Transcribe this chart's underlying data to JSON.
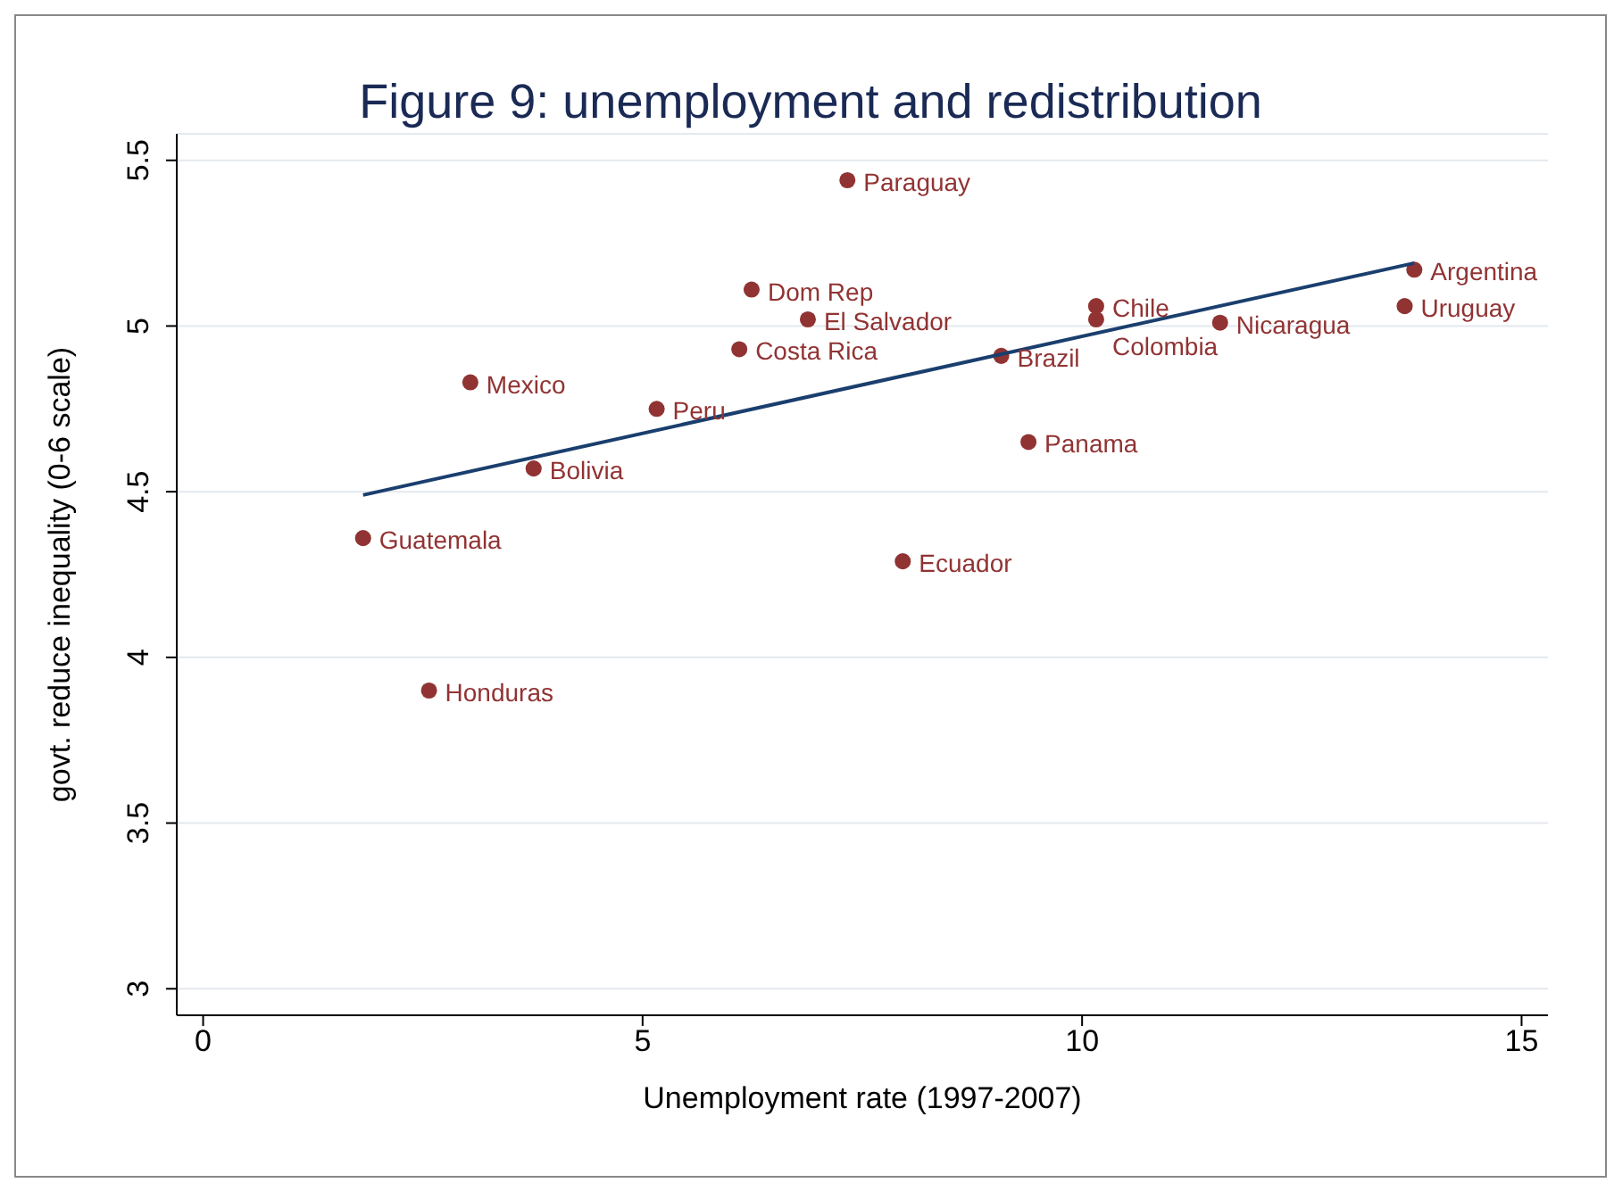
{
  "chart_data": {
    "type": "scatter",
    "title": "Figure 9: unemployment and redistribution",
    "xlabel": "Unemployment rate (1997-2007)",
    "ylabel": "govt. reduce inequality (0-6 scale)",
    "xlim": [
      -0.3,
      15.3
    ],
    "ylim": [
      2.92,
      5.58
    ],
    "xticks": [
      0,
      5,
      10,
      15
    ],
    "yticks": [
      3,
      3.5,
      4,
      4.5,
      5,
      5.5
    ],
    "grid": "y",
    "marker": "circle",
    "series": [
      {
        "color": "#913333",
        "x": [
          7.33,
          13.78,
          13.67,
          6.24,
          6.88,
          6.1,
          10.16,
          10.16,
          11.57,
          9.08,
          3.04,
          5.16,
          9.39,
          3.76,
          1.82,
          7.96,
          2.57
        ],
        "values": [
          5.44,
          5.17,
          5.06,
          5.11,
          5.02,
          4.93,
          5.06,
          5.02,
          5.01,
          4.91,
          4.83,
          4.75,
          4.65,
          4.57,
          4.36,
          4.29,
          3.9
        ]
      },
      {
        "type": "line",
        "marker": "none",
        "color": "#1a3f6e",
        "x": [
          1.82,
          13.78
        ],
        "values": [
          4.49,
          5.19
        ]
      }
    ],
    "annotations": [
      {
        "text": "Paraguay",
        "x": 7.33,
        "y": 5.44
      },
      {
        "text": "Argentina",
        "x": 13.78,
        "y": 5.17
      },
      {
        "text": "Uruguay",
        "x": 13.67,
        "y": 5.06
      },
      {
        "text": "Dom Rep",
        "x": 6.24,
        "y": 5.11
      },
      {
        "text": "El Salvador",
        "x": 6.88,
        "y": 5.02
      },
      {
        "text": "Costa Rica",
        "x": 6.1,
        "y": 4.93
      },
      {
        "text": "Chile",
        "x": 10.16,
        "y": 5.06
      },
      {
        "text": "Colombia",
        "x": 10.16,
        "y": 5.02
      },
      {
        "text": "Nicaragua",
        "x": 11.57,
        "y": 5.01
      },
      {
        "text": "Brazil",
        "x": 9.08,
        "y": 4.91
      },
      {
        "text": "Mexico",
        "x": 3.04,
        "y": 4.83
      },
      {
        "text": "Peru",
        "x": 5.16,
        "y": 4.75
      },
      {
        "text": "Panama",
        "x": 9.39,
        "y": 4.65
      },
      {
        "text": "Bolivia",
        "x": 3.76,
        "y": 4.57
      },
      {
        "text": "Guatemala",
        "x": 1.82,
        "y": 4.36
      },
      {
        "text": "Ecuador",
        "x": 7.96,
        "y": 4.29
      },
      {
        "text": "Honduras",
        "x": 2.57,
        "y": 3.9
      }
    ]
  }
}
